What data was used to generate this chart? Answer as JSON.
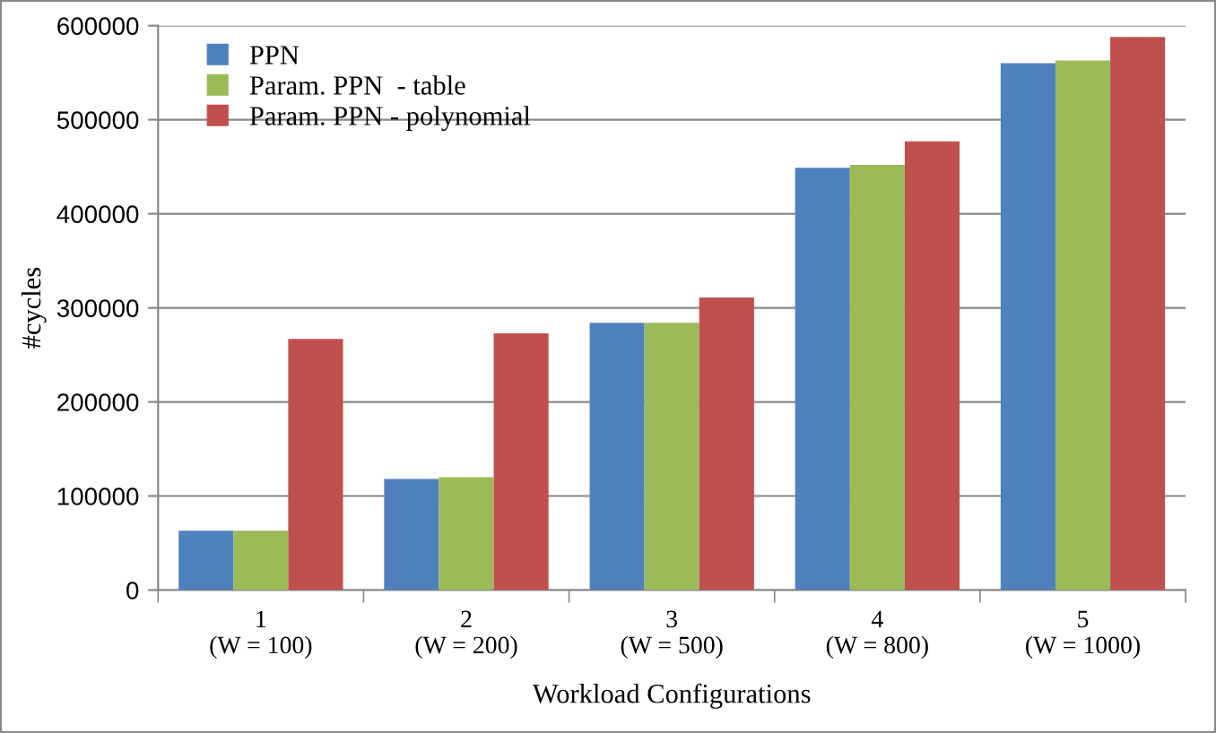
{
  "chart_data": {
    "type": "bar",
    "xlabel": "Workload Configurations",
    "ylabel": "#cycles",
    "categories": [
      "1\n(W = 100)",
      "2\n(W = 200)",
      "3\n(W = 500)",
      "4\n(W = 800)",
      "5\n(W = 1000)"
    ],
    "series": [
      {
        "name": "PPN",
        "color": "#4f81bd",
        "values": [
          63000,
          118000,
          284000,
          449000,
          560000
        ]
      },
      {
        "name": "Param. PPN  - table",
        "color": "#9bbb59",
        "values": [
          63000,
          120000,
          284000,
          452000,
          563000
        ]
      },
      {
        "name": "Param. PPN - polynomial",
        "color": "#c0504d",
        "values": [
          267000,
          273000,
          311000,
          477000,
          588000
        ]
      }
    ],
    "ylim": [
      0,
      600000
    ],
    "yticks": [
      0,
      100000,
      200000,
      300000,
      400000,
      500000,
      600000
    ],
    "grid": "y",
    "legend": "top left"
  }
}
